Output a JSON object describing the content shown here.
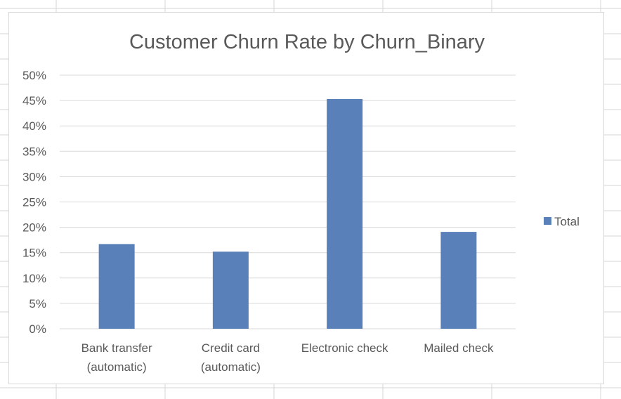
{
  "colors": {
    "bar": "#5a80b9",
    "gridline": "#d9d9d9",
    "text": "#595959",
    "sheet_grid": "#d4d4d4"
  },
  "chart_data": {
    "type": "bar",
    "title": "Customer Churn Rate by Churn_Binary",
    "categories": [
      [
        "Bank transfer",
        "(automatic)"
      ],
      [
        "Credit card",
        "(automatic)"
      ],
      [
        "Electronic check"
      ],
      [
        "Mailed check"
      ]
    ],
    "series": [
      {
        "name": "Total",
        "values": [
          16.7,
          15.2,
          45.3,
          19.1
        ]
      }
    ],
    "ylim": [
      0,
      50
    ],
    "y_ticks": [
      0,
      5,
      10,
      15,
      20,
      25,
      30,
      35,
      40,
      45,
      50
    ],
    "y_tick_format": "percent",
    "grid": true,
    "legend_position": "right"
  }
}
